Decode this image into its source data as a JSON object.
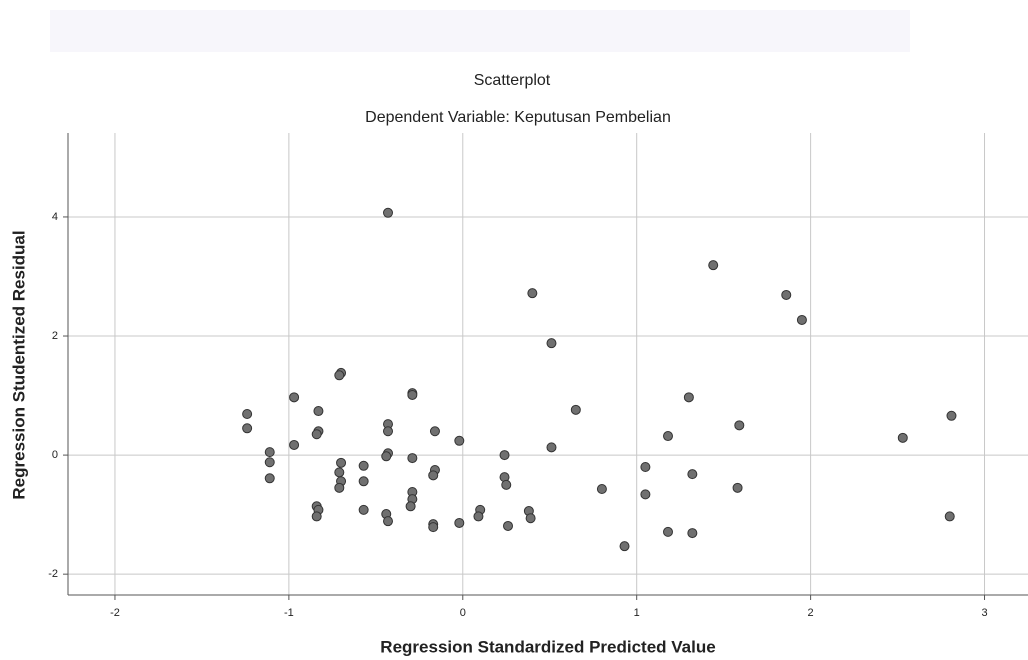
{
  "chart_data": {
    "type": "scatter",
    "title": "Scatterplot",
    "subtitle": "Dependent Variable: Keputusan Pembelian",
    "x_label": "Regression Standardized Predicted Value",
    "y_label": "Regression Studentized Residual",
    "color": "#707070",
    "grid": true,
    "xlim": [
      -2.27,
      3.25
    ],
    "ylim": [
      -2.35,
      5.41
    ],
    "xticks": [
      -2,
      -1,
      0,
      1,
      2,
      3
    ],
    "yticks": [
      -2,
      0,
      2,
      4
    ],
    "x": [
      -1.24,
      -1.24,
      -1.11,
      -1.11,
      -1.11,
      -0.97,
      -0.97,
      -0.83,
      -0.83,
      -0.84,
      -0.84,
      -0.83,
      -0.84,
      -0.7,
      -0.71,
      -0.7,
      -0.71,
      -0.7,
      -0.71,
      -0.57,
      -0.57,
      -0.57,
      -0.43,
      -0.43,
      -0.43,
      -0.43,
      -0.44,
      -0.44,
      -0.43,
      -0.29,
      -0.29,
      -0.29,
      -0.29,
      -0.29,
      -0.3,
      -0.16,
      -0.16,
      -0.17,
      -0.17,
      -0.17,
      -0.02,
      -0.02,
      0.1,
      0.09,
      0.24,
      0.24,
      0.25,
      0.26,
      0.4,
      0.38,
      0.39,
      0.51,
      0.51,
      0.65,
      0.8,
      0.93,
      1.05,
      1.05,
      1.18,
      1.18,
      1.3,
      1.32,
      1.32,
      1.44,
      1.59,
      1.58,
      1.86,
      1.95,
      2.53,
      2.81,
      2.8
    ],
    "values": [
      0.69,
      0.45,
      0.05,
      -0.12,
      -0.39,
      0.97,
      0.17,
      0.74,
      0.4,
      0.35,
      -0.86,
      -0.92,
      -1.03,
      1.38,
      1.34,
      -0.13,
      -0.29,
      -0.44,
      -0.55,
      -0.18,
      -0.44,
      -0.92,
      4.07,
      0.52,
      0.4,
      0.03,
      -0.02,
      -0.99,
      -1.11,
      1.04,
      1.01,
      -0.05,
      -0.62,
      -0.74,
      -0.86,
      0.4,
      -0.25,
      -0.34,
      -1.16,
      -1.21,
      0.24,
      -1.14,
      -0.92,
      -1.03,
      0.0,
      -0.37,
      -0.5,
      -1.19,
      2.72,
      -0.94,
      -1.06,
      1.88,
      0.13,
      0.76,
      -0.57,
      -1.53,
      -0.2,
      -0.66,
      0.32,
      -1.29,
      0.97,
      -0.32,
      -1.31,
      3.19,
      0.5,
      -0.55,
      2.69,
      2.27,
      0.29,
      0.66,
      -1.03
    ]
  }
}
